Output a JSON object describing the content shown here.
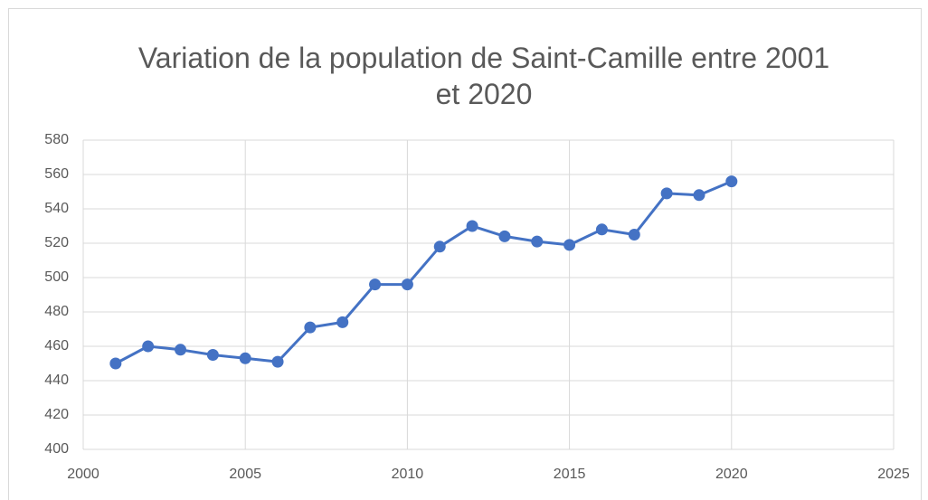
{
  "chart_data": {
    "type": "line",
    "title": "Variation de la population de Saint-Camille entre 2001 et 2020",
    "x": [
      2001,
      2002,
      2003,
      2004,
      2005,
      2006,
      2007,
      2008,
      2009,
      2010,
      2011,
      2012,
      2013,
      2014,
      2015,
      2016,
      2017,
      2018,
      2019,
      2020
    ],
    "values": [
      450,
      460,
      458,
      455,
      453,
      451,
      471,
      474,
      496,
      496,
      518,
      530,
      524,
      521,
      519,
      528,
      525,
      549,
      548,
      556
    ],
    "color": "#4472c4",
    "xlim": [
      2000,
      2025
    ],
    "xticks": [
      2000,
      2005,
      2010,
      2015,
      2020,
      2025
    ],
    "ylim": [
      400,
      580
    ],
    "yticks": [
      400,
      420,
      440,
      460,
      480,
      500,
      520,
      540,
      560,
      580
    ],
    "grid": true
  }
}
